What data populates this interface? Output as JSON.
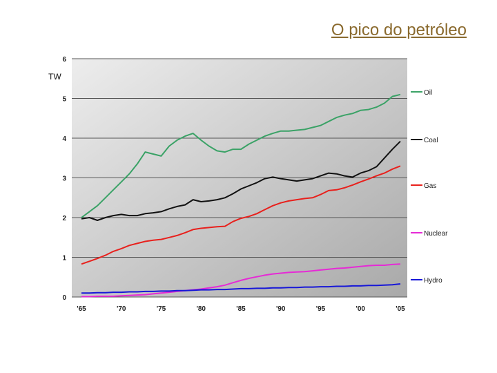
{
  "slide": {
    "title": "O pico do petróleo"
  },
  "chart_data": {
    "type": "line",
    "title": "",
    "xlabel": "",
    "ylabel": "TW",
    "xlim": [
      1965,
      2005
    ],
    "ylim": [
      0,
      6
    ],
    "y_ticks": [
      "0",
      "1",
      "2",
      "3",
      "4",
      "5",
      "6"
    ],
    "x_ticks": [
      {
        "year": 1965,
        "label": "'65"
      },
      {
        "year": 1970,
        "label": "'70"
      },
      {
        "year": 1975,
        "label": "'75"
      },
      {
        "year": 1980,
        "label": "'80"
      },
      {
        "year": 1985,
        "label": "'85"
      },
      {
        "year": 1990,
        "label": "'90"
      },
      {
        "year": 1995,
        "label": "'95"
      },
      {
        "year": 2000,
        "label": "'00"
      },
      {
        "year": 2005,
        "label": "'05"
      }
    ],
    "grid": true,
    "legend": "right",
    "x": [
      1965,
      1966,
      1967,
      1968,
      1969,
      1970,
      1971,
      1972,
      1973,
      1974,
      1975,
      1976,
      1977,
      1978,
      1979,
      1980,
      1981,
      1982,
      1983,
      1984,
      1985,
      1986,
      1987,
      1988,
      1989,
      1990,
      1991,
      1992,
      1993,
      1994,
      1995,
      1996,
      1997,
      1998,
      1999,
      2000,
      2001,
      2002,
      2003,
      2004,
      2005
    ],
    "series": [
      {
        "name": "Oil",
        "color": "#3aa266",
        "values": [
          2.0,
          2.15,
          2.3,
          2.5,
          2.7,
          2.9,
          3.1,
          3.35,
          3.65,
          3.6,
          3.55,
          3.8,
          3.95,
          4.05,
          4.12,
          3.95,
          3.8,
          3.68,
          3.65,
          3.72,
          3.72,
          3.85,
          3.95,
          4.05,
          4.12,
          4.18,
          4.18,
          4.2,
          4.22,
          4.27,
          4.32,
          4.42,
          4.52,
          4.58,
          4.62,
          4.7,
          4.72,
          4.78,
          4.88,
          5.05,
          5.1
        ]
      },
      {
        "name": "Coal",
        "color": "#111111",
        "values": [
          1.97,
          2.0,
          1.93,
          2.0,
          2.05,
          2.08,
          2.05,
          2.05,
          2.1,
          2.12,
          2.15,
          2.22,
          2.28,
          2.32,
          2.45,
          2.4,
          2.42,
          2.45,
          2.5,
          2.6,
          2.72,
          2.8,
          2.88,
          2.98,
          3.02,
          2.98,
          2.95,
          2.92,
          2.95,
          2.98,
          3.05,
          3.12,
          3.1,
          3.05,
          3.02,
          3.12,
          3.18,
          3.28,
          3.5,
          3.72,
          3.92
        ]
      },
      {
        "name": "Gas",
        "color": "#e8201c",
        "values": [
          0.83,
          0.9,
          0.97,
          1.05,
          1.15,
          1.22,
          1.3,
          1.35,
          1.4,
          1.43,
          1.45,
          1.5,
          1.55,
          1.62,
          1.7,
          1.73,
          1.75,
          1.77,
          1.78,
          1.9,
          1.98,
          2.03,
          2.1,
          2.2,
          2.3,
          2.37,
          2.42,
          2.45,
          2.48,
          2.5,
          2.58,
          2.68,
          2.7,
          2.75,
          2.82,
          2.9,
          2.97,
          3.05,
          3.12,
          3.22,
          3.3
        ]
      },
      {
        "name": "Nuclear",
        "color": "#e62ad6",
        "values": [
          0.01,
          0.01,
          0.02,
          0.02,
          0.02,
          0.03,
          0.04,
          0.05,
          0.06,
          0.08,
          0.1,
          0.12,
          0.14,
          0.16,
          0.18,
          0.2,
          0.23,
          0.26,
          0.3,
          0.36,
          0.42,
          0.47,
          0.51,
          0.55,
          0.58,
          0.6,
          0.62,
          0.63,
          0.64,
          0.66,
          0.68,
          0.7,
          0.72,
          0.73,
          0.75,
          0.77,
          0.79,
          0.8,
          0.8,
          0.82,
          0.83
        ]
      },
      {
        "name": "Hydro",
        "color": "#1717d8",
        "values": [
          0.1,
          0.1,
          0.11,
          0.11,
          0.12,
          0.12,
          0.13,
          0.13,
          0.14,
          0.14,
          0.15,
          0.15,
          0.16,
          0.16,
          0.17,
          0.18,
          0.18,
          0.19,
          0.19,
          0.2,
          0.21,
          0.21,
          0.22,
          0.22,
          0.23,
          0.23,
          0.24,
          0.24,
          0.25,
          0.25,
          0.26,
          0.26,
          0.27,
          0.27,
          0.28,
          0.28,
          0.29,
          0.29,
          0.3,
          0.31,
          0.33
        ]
      }
    ]
  }
}
